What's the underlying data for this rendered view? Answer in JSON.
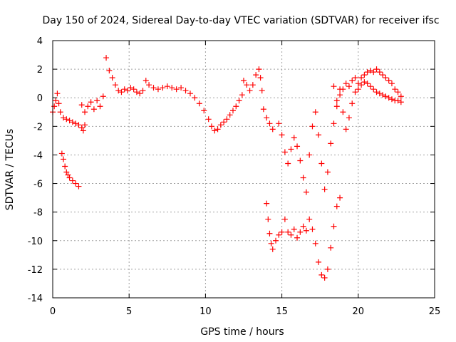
{
  "chart_data": {
    "type": "scatter",
    "title": "Day 150 of 2024, Sidereal Day-to-day VTEC variation (SDTVAR) for receiver ifsc",
    "xlabel": "GPS time / hours",
    "ylabel": "SDTVAR / TECUs",
    "xlim": [
      0,
      25
    ],
    "ylim": [
      -14,
      4
    ],
    "xticks": [
      "0",
      "5",
      "10",
      "15",
      "20",
      "25"
    ],
    "yticks": [
      "4",
      "2",
      "0",
      "-2",
      "-4",
      "-6",
      "-8",
      "-10",
      "-12",
      "-14"
    ],
    "grid": true,
    "legend": "none",
    "marker": "+",
    "color": "#ff0000",
    "series": [
      {
        "points": [
          [
            0.0,
            -1.0
          ],
          [
            0.1,
            -0.6
          ],
          [
            0.2,
            -0.2
          ],
          [
            0.3,
            0.3
          ],
          [
            0.4,
            -0.4
          ],
          [
            0.5,
            -1.0
          ],
          [
            0.7,
            -1.4
          ],
          [
            0.9,
            -1.5
          ],
          [
            1.1,
            -1.6
          ],
          [
            1.3,
            -1.7
          ],
          [
            1.5,
            -1.8
          ],
          [
            1.7,
            -1.9
          ],
          [
            1.9,
            -2.1
          ],
          [
            2.0,
            -2.3
          ],
          [
            2.1,
            -1.9
          ],
          [
            0.6,
            -3.9
          ],
          [
            0.7,
            -4.3
          ],
          [
            0.8,
            -4.8
          ],
          [
            0.9,
            -5.2
          ],
          [
            1.0,
            -5.4
          ],
          [
            1.1,
            -5.6
          ],
          [
            1.3,
            -5.8
          ],
          [
            1.5,
            -6.0
          ],
          [
            1.7,
            -6.2
          ],
          [
            1.9,
            -0.5
          ],
          [
            2.1,
            -1.0
          ],
          [
            2.3,
            -0.6
          ],
          [
            2.5,
            -0.3
          ],
          [
            2.7,
            -0.8
          ],
          [
            2.9,
            -0.2
          ],
          [
            3.1,
            -0.6
          ],
          [
            3.3,
            0.1
          ],
          [
            3.5,
            2.8
          ],
          [
            3.7,
            1.9
          ],
          [
            3.9,
            1.4
          ],
          [
            4.1,
            0.9
          ],
          [
            4.3,
            0.5
          ],
          [
            4.5,
            0.4
          ],
          [
            4.7,
            0.6
          ],
          [
            4.9,
            0.5
          ],
          [
            5.1,
            0.7
          ],
          [
            5.3,
            0.6
          ],
          [
            5.5,
            0.4
          ],
          [
            5.7,
            0.3
          ],
          [
            5.9,
            0.5
          ],
          [
            6.1,
            1.2
          ],
          [
            6.3,
            0.9
          ],
          [
            6.6,
            0.7
          ],
          [
            6.9,
            0.6
          ],
          [
            7.2,
            0.7
          ],
          [
            7.5,
            0.8
          ],
          [
            7.8,
            0.7
          ],
          [
            8.1,
            0.6
          ],
          [
            8.4,
            0.7
          ],
          [
            8.7,
            0.5
          ],
          [
            9.0,
            0.3
          ],
          [
            9.3,
            0.0
          ],
          [
            9.6,
            -0.4
          ],
          [
            9.9,
            -0.9
          ],
          [
            10.2,
            -1.5
          ],
          [
            10.4,
            -2.0
          ],
          [
            10.6,
            -2.3
          ],
          [
            10.8,
            -2.2
          ],
          [
            11.0,
            -1.9
          ],
          [
            11.2,
            -1.7
          ],
          [
            11.4,
            -1.5
          ],
          [
            11.6,
            -1.2
          ],
          [
            11.8,
            -0.9
          ],
          [
            12.0,
            -0.6
          ],
          [
            12.2,
            -0.2
          ],
          [
            12.4,
            0.2
          ],
          [
            12.5,
            1.2
          ],
          [
            12.7,
            0.9
          ],
          [
            12.9,
            0.5
          ],
          [
            13.1,
            0.9
          ],
          [
            13.3,
            1.6
          ],
          [
            13.5,
            2.0
          ],
          [
            13.6,
            1.4
          ],
          [
            13.7,
            0.5
          ],
          [
            13.8,
            -0.8
          ],
          [
            14.0,
            -1.4
          ],
          [
            14.2,
            -1.8
          ],
          [
            14.4,
            -2.2
          ],
          [
            14.0,
            -7.4
          ],
          [
            14.1,
            -8.5
          ],
          [
            14.2,
            -9.5
          ],
          [
            14.3,
            -10.2
          ],
          [
            14.4,
            -10.6
          ],
          [
            14.6,
            -10.0
          ],
          [
            14.8,
            -9.6
          ],
          [
            15.0,
            -9.4
          ],
          [
            15.2,
            -8.5
          ],
          [
            15.4,
            -9.4
          ],
          [
            15.6,
            -9.6
          ],
          [
            15.8,
            -9.2
          ],
          [
            16.0,
            -9.8
          ],
          [
            16.2,
            -9.4
          ],
          [
            16.4,
            -9.0
          ],
          [
            16.6,
            -9.3
          ],
          [
            16.8,
            -8.5
          ],
          [
            17.0,
            -9.2
          ],
          [
            17.2,
            -10.2
          ],
          [
            17.4,
            -11.5
          ],
          [
            17.6,
            -12.4
          ],
          [
            17.8,
            -12.6
          ],
          [
            18.0,
            -12.0
          ],
          [
            18.2,
            -10.5
          ],
          [
            18.4,
            -9.0
          ],
          [
            18.6,
            -7.6
          ],
          [
            18.8,
            -7.0
          ],
          [
            14.8,
            -1.8
          ],
          [
            15.0,
            -2.6
          ],
          [
            15.2,
            -3.8
          ],
          [
            15.4,
            -4.6
          ],
          [
            15.6,
            -3.6
          ],
          [
            15.8,
            -2.8
          ],
          [
            16.0,
            -3.4
          ],
          [
            16.2,
            -4.4
          ],
          [
            16.4,
            -5.6
          ],
          [
            16.6,
            -6.6
          ],
          [
            16.8,
            -4.0
          ],
          [
            17.0,
            -2.0
          ],
          [
            17.2,
            -1.0
          ],
          [
            17.4,
            -2.6
          ],
          [
            17.6,
            -4.6
          ],
          [
            17.8,
            -6.4
          ],
          [
            18.0,
            -5.2
          ],
          [
            18.2,
            -3.2
          ],
          [
            18.4,
            -1.8
          ],
          [
            18.6,
            -0.6
          ],
          [
            18.8,
            0.6
          ],
          [
            19.0,
            -1.0
          ],
          [
            19.2,
            -2.2
          ],
          [
            19.4,
            -1.4
          ],
          [
            19.6,
            -0.4
          ],
          [
            19.8,
            0.4
          ],
          [
            20.0,
            1.0
          ],
          [
            20.2,
            1.4
          ],
          [
            20.4,
            1.6
          ],
          [
            20.6,
            1.8
          ],
          [
            20.8,
            1.9
          ],
          [
            21.0,
            1.8
          ],
          [
            21.2,
            2.0
          ],
          [
            21.4,
            1.8
          ],
          [
            21.6,
            1.6
          ],
          [
            21.8,
            1.4
          ],
          [
            22.0,
            1.2
          ],
          [
            22.2,
            1.0
          ],
          [
            22.4,
            0.6
          ],
          [
            22.6,
            0.4
          ],
          [
            22.8,
            0.1
          ],
          [
            18.4,
            0.8
          ],
          [
            18.6,
            -0.2
          ],
          [
            18.8,
            0.2
          ],
          [
            19.0,
            0.6
          ],
          [
            19.2,
            1.0
          ],
          [
            19.4,
            0.8
          ],
          [
            19.6,
            1.2
          ],
          [
            19.8,
            1.4
          ],
          [
            20.0,
            0.6
          ],
          [
            20.2,
            0.9
          ],
          [
            20.4,
            1.1
          ],
          [
            20.6,
            1.0
          ],
          [
            20.8,
            0.8
          ],
          [
            21.0,
            0.6
          ],
          [
            21.2,
            0.4
          ],
          [
            21.4,
            0.3
          ],
          [
            21.6,
            0.2
          ],
          [
            21.8,
            0.1
          ],
          [
            22.0,
            0.0
          ],
          [
            22.2,
            -0.1
          ],
          [
            22.4,
            -0.2
          ],
          [
            22.6,
            -0.2
          ],
          [
            22.8,
            -0.3
          ]
        ]
      }
    ]
  }
}
